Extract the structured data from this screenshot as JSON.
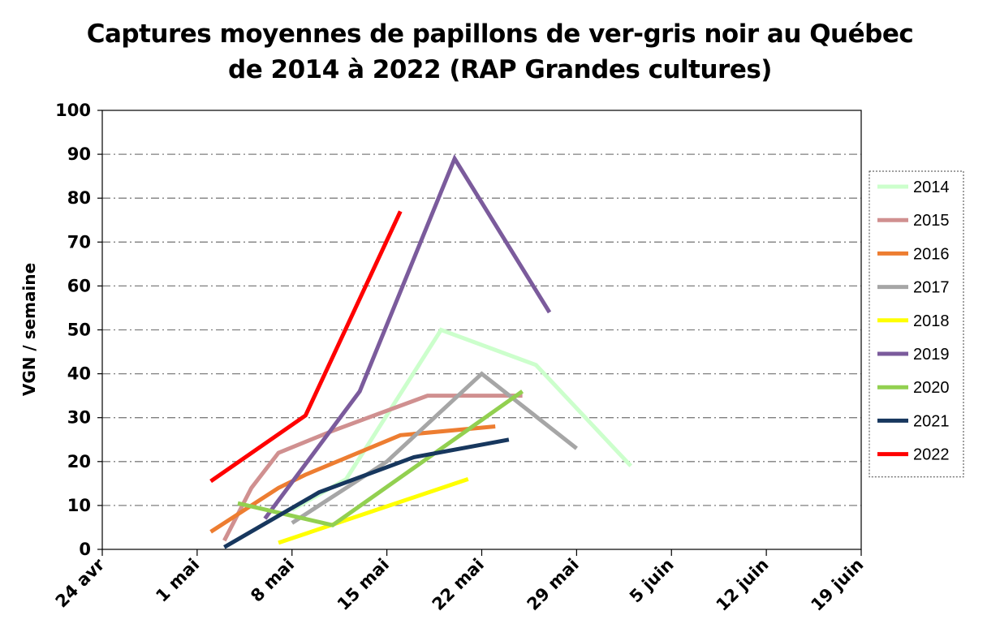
{
  "chart_data": {
    "type": "line",
    "title_line1": "Captures moyennes de papillons de ver-gris noir au Québec",
    "title_line2": "de 2014 à 2022 (RAP Grandes cultures)",
    "xlabel": "",
    "ylabel": "VGN / semaine",
    "ylim": [
      0,
      100
    ],
    "yticks": [
      0,
      10,
      20,
      30,
      40,
      50,
      60,
      70,
      80,
      90,
      100
    ],
    "xlim": [
      0,
      56
    ],
    "xticks": [
      {
        "v": 0,
        "label": "24 avr"
      },
      {
        "v": 7,
        "label": "1 mai"
      },
      {
        "v": 14,
        "label": "8 mai"
      },
      {
        "v": 21,
        "label": "15 mai"
      },
      {
        "v": 28,
        "label": "22 mai"
      },
      {
        "v": 35,
        "label": "29 mai"
      },
      {
        "v": 42,
        "label": "5 juin"
      },
      {
        "v": 49,
        "label": "12 juin"
      },
      {
        "v": 56,
        "label": "19 juin"
      }
    ],
    "grid": "horizontal dash-dot",
    "legend_position": "right",
    "series": [
      {
        "name": "2014",
        "color": "#ccffcc",
        "points": [
          [
            14,
            9
          ],
          [
            18,
            16
          ],
          [
            25,
            50
          ],
          [
            32,
            42
          ],
          [
            39,
            19
          ]
        ]
      },
      {
        "name": "2015",
        "color": "#d09090",
        "points": [
          [
            9,
            2
          ],
          [
            11,
            14
          ],
          [
            13,
            22
          ],
          [
            17,
            27
          ],
          [
            24,
            35
          ],
          [
            31,
            35
          ]
        ]
      },
      {
        "name": "2016",
        "color": "#ed7d31",
        "points": [
          [
            8,
            4
          ],
          [
            13,
            14
          ],
          [
            15,
            17
          ],
          [
            22,
            26
          ],
          [
            29,
            28
          ]
        ]
      },
      {
        "name": "2017",
        "color": "#a6a6a6",
        "points": [
          [
            14,
            6
          ],
          [
            21,
            20
          ],
          [
            28,
            40
          ],
          [
            35,
            23
          ]
        ]
      },
      {
        "name": "2018",
        "color": "#ffff00",
        "points": [
          [
            13,
            1.5
          ],
          [
            27,
            16
          ]
        ]
      },
      {
        "name": "2019",
        "color": "#7b5b9c",
        "points": [
          [
            12,
            7
          ],
          [
            19,
            36
          ],
          [
            26,
            89
          ],
          [
            33,
            54
          ]
        ]
      },
      {
        "name": "2020",
        "color": "#92d050",
        "points": [
          [
            10,
            10.5
          ],
          [
            17,
            5.5
          ],
          [
            31,
            36
          ]
        ]
      },
      {
        "name": "2021",
        "color": "#17375e",
        "points": [
          [
            9,
            0.5
          ],
          [
            16,
            13
          ],
          [
            23,
            21
          ],
          [
            30,
            25
          ]
        ]
      },
      {
        "name": "2022",
        "color": "#ff0000",
        "points": [
          [
            8,
            15.5
          ],
          [
            15,
            30.5
          ],
          [
            22,
            77
          ]
        ]
      }
    ]
  },
  "legend_labels": [
    "2014",
    "2015",
    "2016",
    "2017",
    "2018",
    "2019",
    "2020",
    "2021",
    "2022"
  ]
}
